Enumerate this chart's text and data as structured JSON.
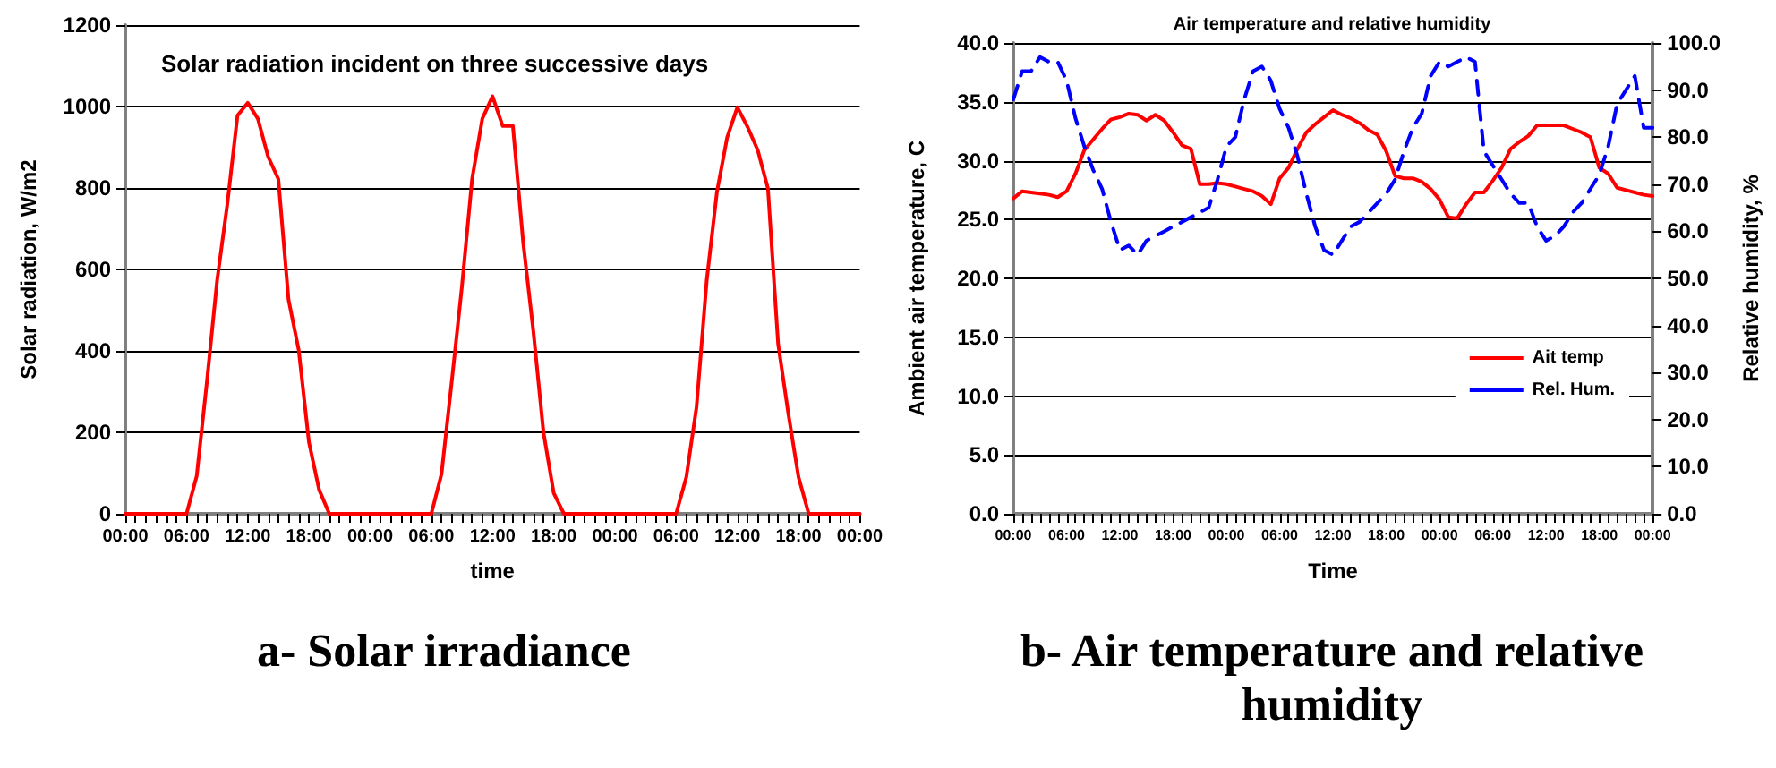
{
  "chart_data": [
    {
      "type": "line",
      "title": "Solar radiation incident on three successive days",
      "xlabel": "time",
      "ylabel": "Solar radiation, W/m2",
      "annotations": [
        "a- Solar irradiance"
      ],
      "categories": [
        "00:00",
        null,
        null,
        null,
        null,
        null,
        "06:00",
        null,
        null,
        null,
        null,
        null,
        "12:00",
        null,
        null,
        null,
        null,
        null,
        "18:00",
        null,
        null,
        null,
        null,
        null,
        "00:00",
        null,
        null,
        null,
        null,
        null,
        "06:00",
        null,
        null,
        null,
        null,
        null,
        "12:00",
        null,
        null,
        null,
        null,
        null,
        "18:00",
        null,
        null,
        null,
        null,
        null,
        "00:00",
        null,
        null,
        null,
        null,
        null,
        "06:00",
        null,
        null,
        null,
        null,
        null,
        "12:00",
        null,
        null,
        null,
        null,
        null,
        "18:00",
        null,
        null,
        null,
        null,
        null,
        "00:00"
      ],
      "ylim": [
        0,
        1200
      ],
      "yticks": [
        0,
        200,
        400,
        600,
        800,
        1000,
        1200
      ],
      "grid": "y",
      "legend": false,
      "marker": "none",
      "series": [
        {
          "color": "#ff0000",
          "line_style": "solid",
          "values": [
            0,
            0,
            0,
            0,
            0,
            0,
            0,
            93,
            324,
            573,
            760,
            978,
            1009,
            970,
            877,
            822,
            526,
            402,
            176,
            59,
            0,
            0,
            0,
            0,
            0,
            0,
            0,
            0,
            0,
            0,
            0,
            98,
            324,
            558,
            822,
            970,
            1025,
            952,
            952,
            667,
            449,
            199,
            51,
            0,
            0,
            0,
            0,
            0,
            0,
            0,
            0,
            0,
            0,
            0,
            0,
            90,
            262,
            573,
            790,
            924,
            998,
            950,
            893,
            799,
            417,
            246,
            90,
            0,
            0,
            0,
            0,
            0,
            0
          ]
        }
      ]
    },
    {
      "type": "line",
      "title": "Air temperature and relative humidity",
      "xlabel": "Time",
      "ylabel": "Ambient air temperature, C",
      "y2label": "Relative humidity, %",
      "annotations": [
        "b- Air temperature and relative humidity"
      ],
      "categories": [
        "00:00",
        null,
        null,
        null,
        null,
        null,
        "06:00",
        null,
        null,
        null,
        null,
        null,
        "12:00",
        null,
        null,
        null,
        null,
        null,
        "18:00",
        null,
        null,
        null,
        null,
        null,
        "00:00",
        null,
        null,
        null,
        null,
        null,
        "06:00",
        null,
        null,
        null,
        null,
        null,
        "12:00",
        null,
        null,
        null,
        null,
        null,
        "18:00",
        null,
        null,
        null,
        null,
        null,
        "00:00",
        null,
        null,
        null,
        null,
        null,
        "06:00",
        null,
        null,
        null,
        null,
        null,
        "12:00",
        null,
        null,
        null,
        null,
        null,
        "18:00",
        null,
        null,
        null,
        null,
        null,
        "00:00"
      ],
      "ylim": [
        0,
        40
      ],
      "yticks": [
        {
          "value": 0,
          "label": "0.0"
        },
        {
          "value": 5,
          "label": "5.0"
        },
        {
          "value": 10,
          "label": "10.0"
        },
        {
          "value": 15,
          "label": "15.0"
        },
        {
          "value": 20,
          "label": "20.0"
        },
        {
          "value": 25,
          "label": "25.0"
        },
        {
          "value": 30,
          "label": "30.0"
        },
        {
          "value": 35,
          "label": "35.0"
        },
        {
          "value": 40,
          "label": "40.0"
        }
      ],
      "y2lim": [
        0,
        100
      ],
      "y2ticks": [
        {
          "value": 0,
          "label": "0.0"
        },
        {
          "value": 10,
          "label": "10.0"
        },
        {
          "value": 20,
          "label": "20.0"
        },
        {
          "value": 30,
          "label": "30.0"
        },
        {
          "value": 40,
          "label": "40.0"
        },
        {
          "value": 50,
          "label": "50.0"
        },
        {
          "value": 60,
          "label": "60.0"
        },
        {
          "value": 70,
          "label": "70.0"
        },
        {
          "value": 80,
          "label": "80.0"
        },
        {
          "value": 90,
          "label": "90.0"
        },
        {
          "value": 100,
          "label": "100.0"
        }
      ],
      "grid": "y",
      "legend": "bottom right",
      "marker": "none",
      "series": [
        {
          "name": "Ait temp",
          "color": "#ff0000",
          "line_style": "solid",
          "values": [
            26.8,
            27.4,
            27.3,
            27.2,
            27.1,
            26.9,
            27.4,
            28.9,
            30.9,
            31.8,
            32.7,
            33.5,
            33.7,
            34.0,
            33.9,
            33.4,
            33.9,
            33.4,
            32.4,
            31.3,
            31.0,
            28.0,
            28.0,
            28.1,
            28.0,
            27.8,
            27.6,
            27.4,
            27.0,
            26.3,
            28.5,
            29.4,
            31.0,
            32.4,
            33.1,
            33.7,
            34.3,
            33.9,
            33.6,
            33.2,
            32.6,
            32.2,
            30.8,
            28.7,
            28.5,
            28.5,
            28.2,
            27.6,
            26.7,
            25.2,
            25.1,
            26.3,
            27.3,
            27.3,
            28.3,
            29.4,
            31.0,
            31.6,
            32.1,
            33.0,
            33.0,
            33.0,
            33.0,
            32.7,
            32.4,
            32.0,
            29.4,
            28.9,
            27.7,
            27.5,
            27.3,
            27.1,
            27.0
          ]
        },
        {
          "name": "Rel. Hum.",
          "color": "#0000ff",
          "line_style": "dashed",
          "axis": "y2",
          "values": [
            88,
            94,
            94,
            97,
            96,
            96,
            92,
            84,
            78,
            73,
            69,
            62,
            56,
            57,
            55,
            58,
            59,
            60,
            61,
            62,
            63,
            64,
            65,
            71,
            78,
            80,
            88,
            94,
            95,
            92,
            86,
            82,
            76,
            68,
            61,
            56,
            55,
            58,
            61,
            62,
            64,
            66,
            68,
            71,
            77,
            82,
            85,
            93,
            96,
            95,
            96,
            97,
            96,
            77,
            74,
            71,
            68,
            66,
            66,
            61,
            58,
            59,
            61,
            64,
            66,
            69,
            72,
            78,
            87,
            90,
            93,
            82,
            82
          ]
        }
      ]
    }
  ]
}
